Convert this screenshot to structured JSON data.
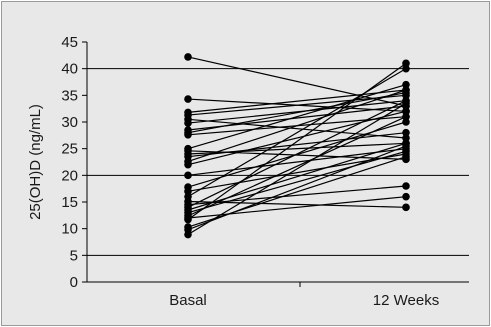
{
  "chart_data": {
    "type": "line",
    "title": "",
    "xlabel": "",
    "ylabel": "25(OH)D (ng/mL)",
    "categories": [
      "Basal",
      "12 Weeks"
    ],
    "ylim": [
      0,
      45
    ],
    "yticks": [
      0,
      5,
      10,
      15,
      20,
      25,
      30,
      35,
      40,
      45
    ],
    "grid": true,
    "gridlines_y": [
      20,
      40
    ],
    "reference_lines_y": [
      5
    ],
    "series_color": "#000000",
    "pairs": [
      [
        42.2,
        33.0
      ],
      [
        34.3,
        32.0
      ],
      [
        31.8,
        36.0
      ],
      [
        31.3,
        35.0
      ],
      [
        30.5,
        27.0
      ],
      [
        29.8,
        34.0
      ],
      [
        28.5,
        33.0
      ],
      [
        28.0,
        35.5
      ],
      [
        27.6,
        31.0
      ],
      [
        25.0,
        37.0
      ],
      [
        24.6,
        23.0
      ],
      [
        24.0,
        26.0
      ],
      [
        23.5,
        28.0
      ],
      [
        22.6,
        36.0
      ],
      [
        22.0,
        32.0
      ],
      [
        20.0,
        25.0
      ],
      [
        17.8,
        30.0
      ],
      [
        17.0,
        24.0
      ],
      [
        16.0,
        40.0
      ],
      [
        15.1,
        14.0
      ],
      [
        14.5,
        18.0
      ],
      [
        14.0,
        34.0
      ],
      [
        13.5,
        26.0
      ],
      [
        13.0,
        24.5
      ],
      [
        12.4,
        31.0
      ],
      [
        12.0,
        16.0
      ],
      [
        11.7,
        41.0
      ],
      [
        10.3,
        23.5
      ],
      [
        9.8,
        25.5
      ],
      [
        8.9,
        33.5
      ]
    ]
  }
}
